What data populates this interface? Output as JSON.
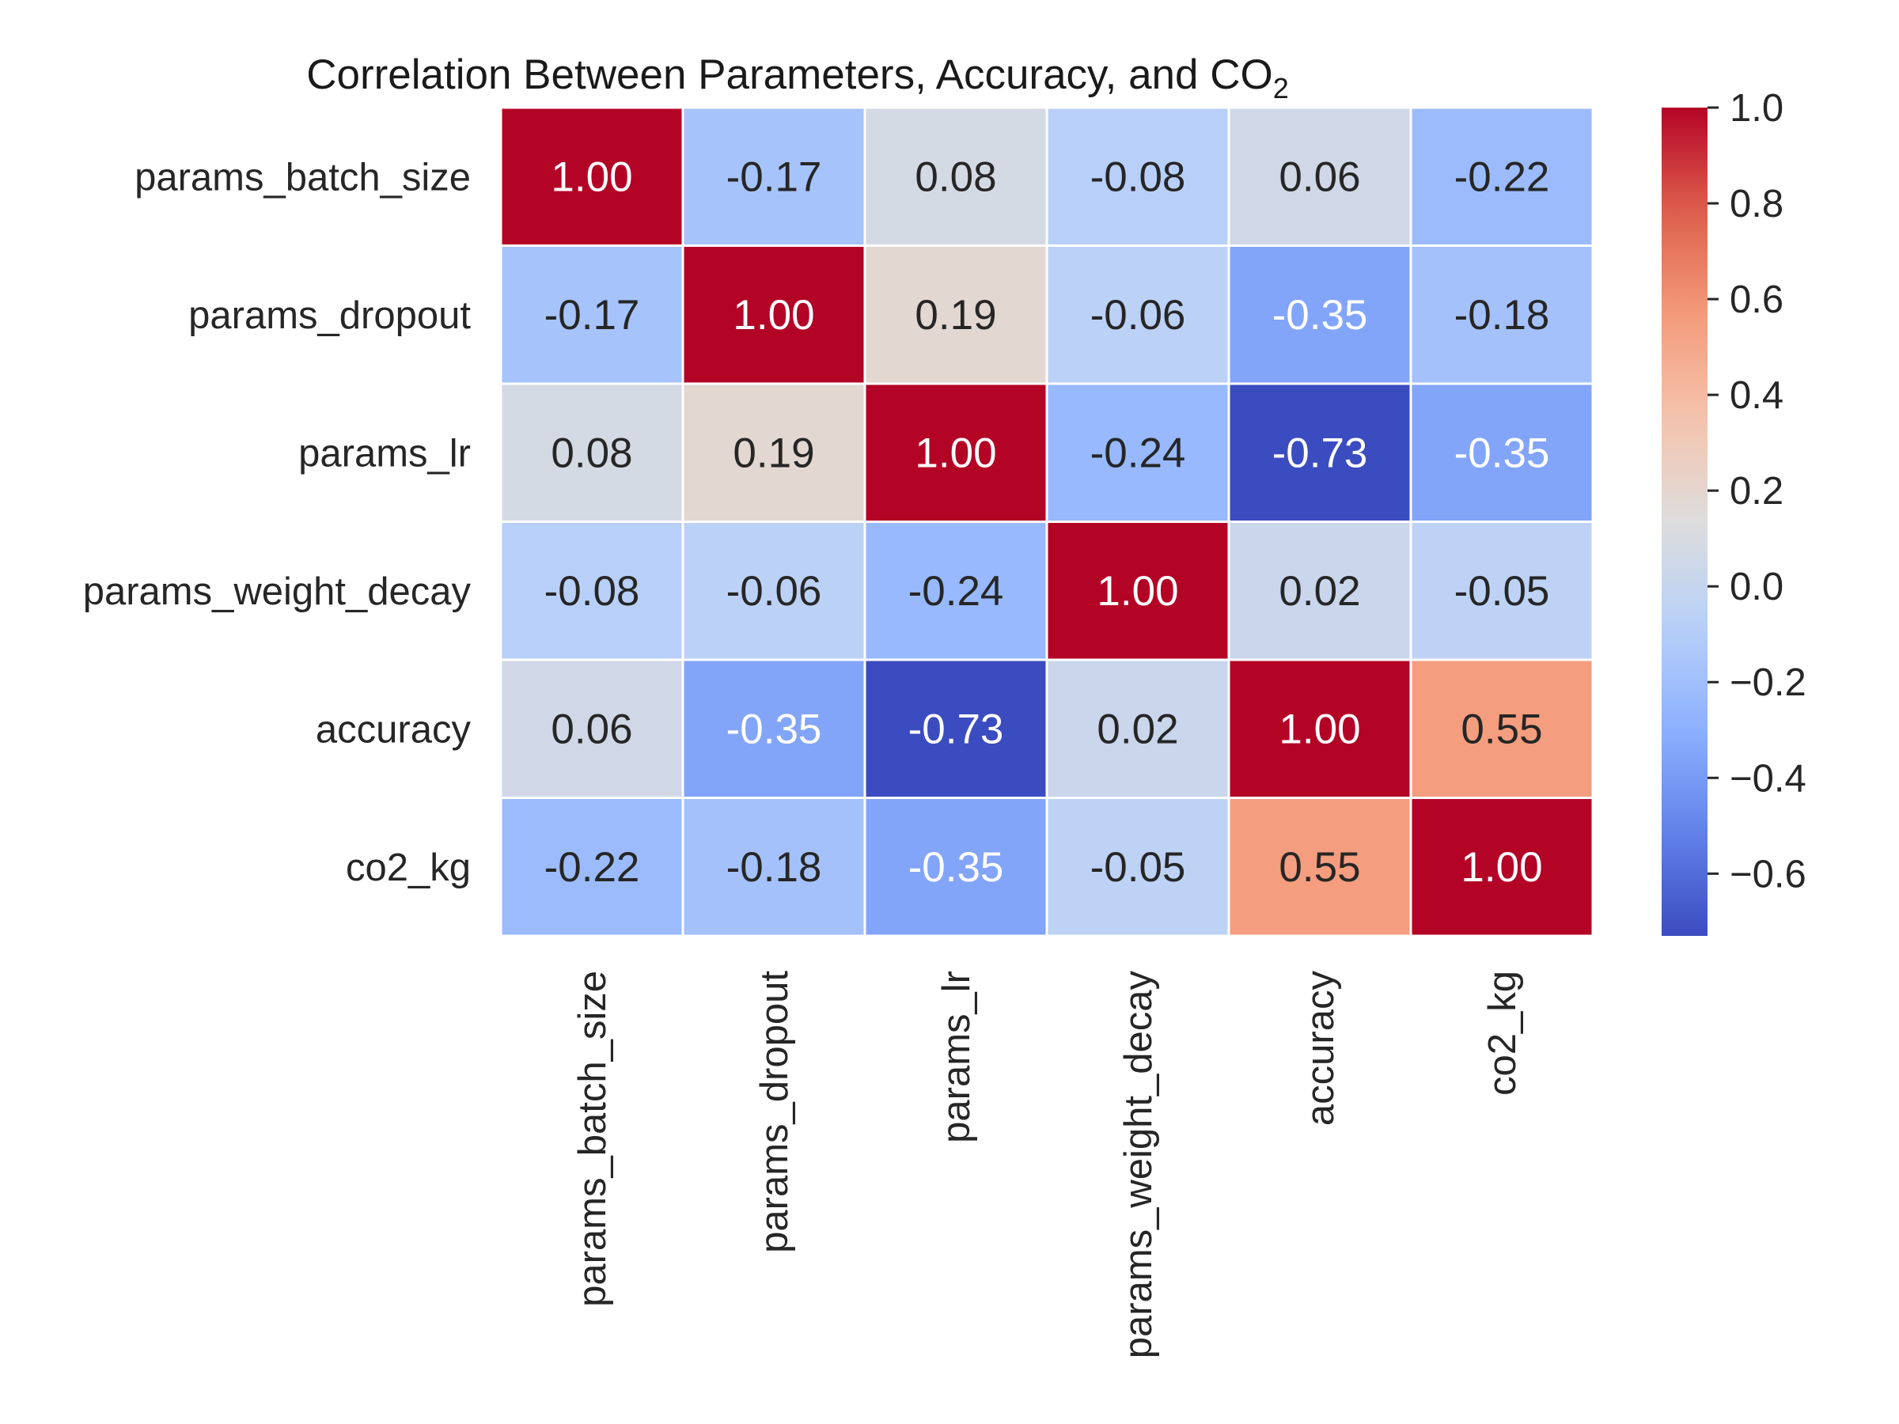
{
  "chart_data": {
    "type": "heatmap",
    "title": "Correlation Between Parameters, Accuracy, and CO",
    "title_subscript": "2",
    "row_labels": [
      "params_batch_size",
      "params_dropout",
      "params_lr",
      "params_weight_decay",
      "accuracy",
      "co2_kg"
    ],
    "col_labels": [
      "params_batch_size",
      "params_dropout",
      "params_lr",
      "params_weight_decay",
      "accuracy",
      "co2_kg"
    ],
    "values": [
      [
        1.0,
        -0.17,
        0.08,
        -0.08,
        0.06,
        -0.22
      ],
      [
        -0.17,
        1.0,
        0.19,
        -0.06,
        -0.35,
        -0.18
      ],
      [
        0.08,
        0.19,
        1.0,
        -0.24,
        -0.73,
        -0.35
      ],
      [
        -0.08,
        -0.06,
        -0.24,
        1.0,
        0.02,
        -0.05
      ],
      [
        0.06,
        -0.35,
        -0.73,
        0.02,
        1.0,
        0.55
      ],
      [
        -0.22,
        -0.18,
        -0.35,
        -0.05,
        0.55,
        1.0
      ]
    ],
    "cell_labels": [
      [
        "1.00",
        "-0.17",
        "0.08",
        "-0.08",
        "0.06",
        "-0.22"
      ],
      [
        "-0.17",
        "1.00",
        "0.19",
        "-0.06",
        "-0.35",
        "-0.18"
      ],
      [
        "0.08",
        "0.19",
        "1.00",
        "-0.24",
        "-0.73",
        "-0.35"
      ],
      [
        "-0.08",
        "-0.06",
        "-0.24",
        "1.00",
        "0.02",
        "-0.05"
      ],
      [
        "0.06",
        "-0.35",
        "-0.73",
        "0.02",
        "1.00",
        "0.55"
      ],
      [
        "-0.22",
        "-0.18",
        "-0.35",
        "-0.05",
        "0.55",
        "1.00"
      ]
    ],
    "colormap": "coolwarm",
    "colorbar": {
      "vmin": -0.73,
      "vmax": 1.0,
      "ticks": [
        1.0,
        0.8,
        0.6,
        0.4,
        0.2,
        0.0,
        -0.2,
        -0.4,
        -0.6
      ],
      "tick_labels": [
        "1.0",
        "0.8",
        "0.6",
        "0.4",
        "0.2",
        "0.0",
        "−0.2",
        "−0.4",
        "−0.6"
      ],
      "placement": "right"
    },
    "grid": false
  }
}
